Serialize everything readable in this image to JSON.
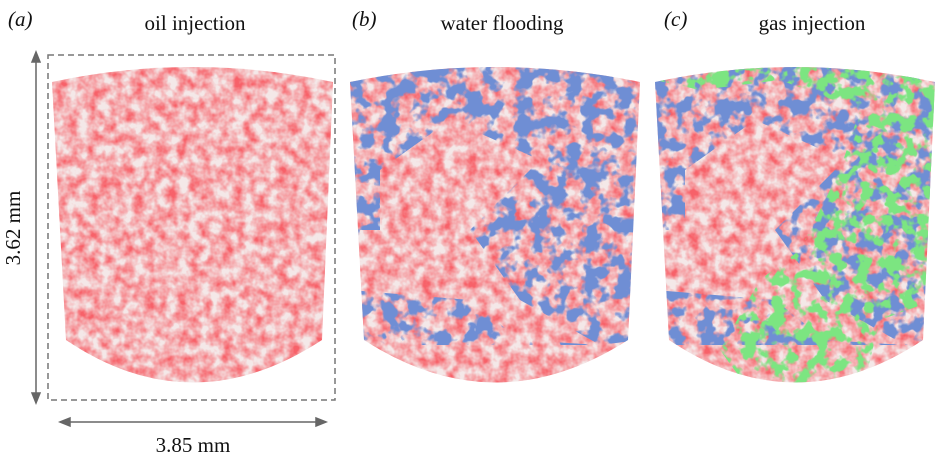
{
  "panels": [
    {
      "label": "(a)",
      "title": "oil injection"
    },
    {
      "label": "(b)",
      "title": "water flooding"
    },
    {
      "label": "(c)",
      "title": "gas injection"
    }
  ],
  "dimensions": {
    "height": "3.62 mm",
    "width": "3.85 mm"
  }
}
